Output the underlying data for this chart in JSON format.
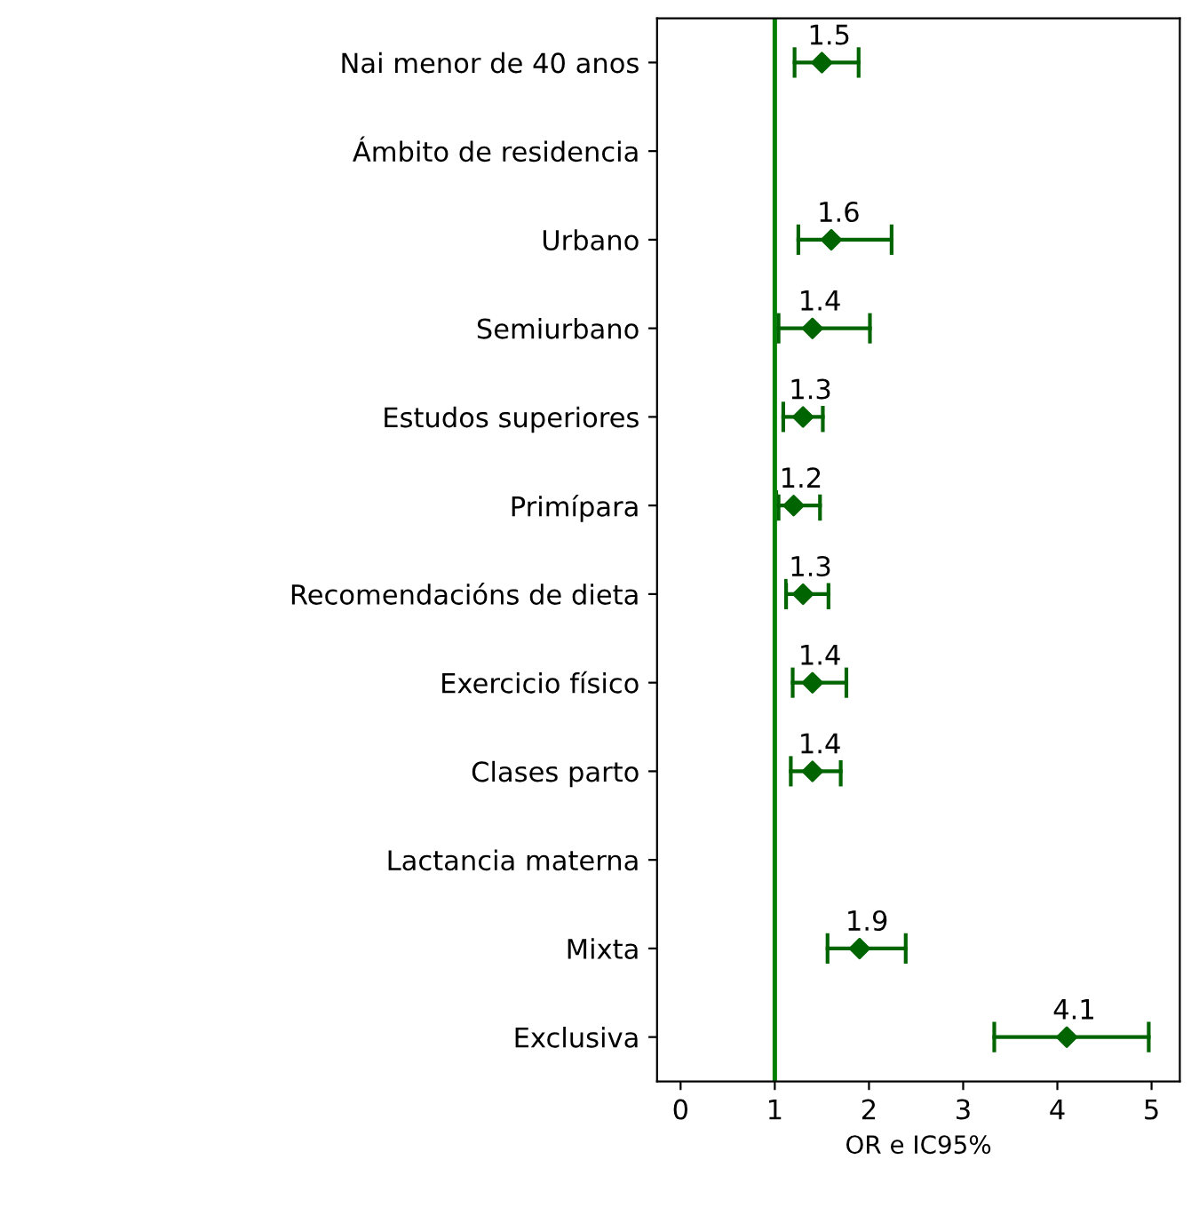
{
  "chart_data": {
    "type": "scatter",
    "orientation": "horizontal",
    "xlabel": "OR e IC95%",
    "categories": [
      "Nai menor de 40 anos",
      "Ámbito de residencia",
      "Urbano",
      "Semiurbano",
      "Estudos superiores",
      "Primípara",
      "Recomendacións de dieta",
      "Exercicio físico",
      "Clases parto",
      "Lactancia materna",
      "Mixta",
      "Exclusiva"
    ],
    "series": [
      {
        "color": "#006400",
        "values": [
          1.5,
          null,
          1.6,
          1.4,
          1.3,
          1.2,
          1.3,
          1.4,
          1.4,
          null,
          1.9,
          4.1
        ],
        "errors": [
          [
            1.21,
            1.89
          ],
          null,
          [
            1.25,
            2.24
          ],
          [
            1.04,
            2.01
          ],
          [
            1.09,
            1.51
          ],
          [
            1.04,
            1.48
          ],
          [
            1.12,
            1.57
          ],
          [
            1.19,
            1.76
          ],
          [
            1.17,
            1.7
          ],
          null,
          [
            1.56,
            2.39
          ],
          [
            3.33,
            4.97
          ]
        ]
      }
    ],
    "marker": "diamond",
    "data_labels": true,
    "xlim": [
      -0.25,
      5.3
    ],
    "xticks": [
      0,
      1,
      2,
      3,
      4,
      5
    ],
    "ref_lines": [
      {
        "axis": "x",
        "value": 1,
        "color": "#008000"
      }
    ],
    "grid": false
  }
}
